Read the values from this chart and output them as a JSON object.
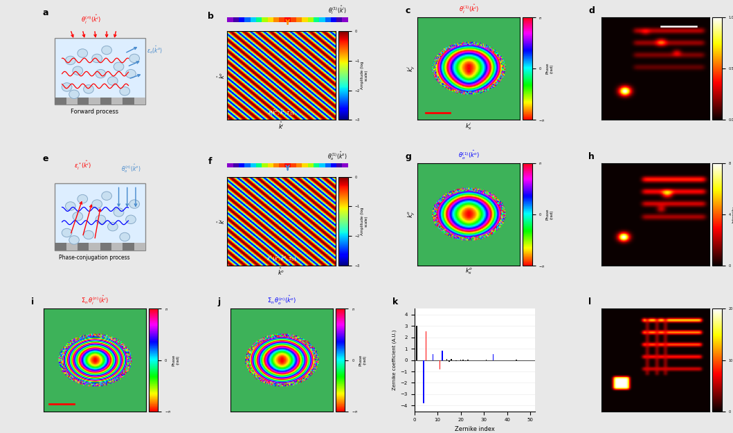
{
  "fig_width": 10.59,
  "fig_height": 6.26,
  "bg_color": "#e8e8e8",
  "zernike_indices": [
    1,
    2,
    3,
    4,
    5,
    6,
    7,
    8,
    9,
    10,
    11,
    12,
    13,
    14,
    15,
    16,
    17,
    18,
    19,
    20,
    21,
    22,
    23,
    24,
    25,
    26,
    27,
    28,
    29,
    30,
    31,
    32,
    33,
    34,
    35,
    36,
    37,
    38,
    39,
    40,
    41,
    42,
    43,
    44,
    45,
    46,
    47,
    48,
    49,
    50
  ],
  "zernike_black": [
    3.0,
    0,
    0,
    0,
    0,
    0,
    0,
    0,
    0,
    0,
    0,
    0,
    0,
    0.08,
    -0.12,
    0.08,
    0,
    -0.06,
    0,
    0.06,
    0.06,
    -0.1,
    0.06,
    0,
    0,
    0,
    0,
    0,
    0,
    0,
    0.06,
    0,
    0,
    0,
    0,
    0,
    0,
    0,
    0,
    0,
    0,
    0,
    0,
    0.06,
    0,
    0,
    0,
    0,
    0,
    0
  ],
  "zernike_red": [
    0,
    0,
    0,
    0,
    2.5,
    0,
    0,
    0,
    0,
    0,
    -0.8,
    0,
    0,
    0,
    0,
    0,
    0,
    0,
    0,
    0,
    0,
    0,
    0,
    0,
    0,
    0,
    0,
    0,
    0,
    0,
    0,
    0,
    0,
    0,
    0,
    0,
    0,
    0,
    0,
    0,
    0,
    0,
    0,
    0,
    0,
    0,
    0,
    0,
    0,
    0
  ],
  "zernike_blue": [
    0,
    0,
    0,
    -3.8,
    0,
    0,
    0,
    0.5,
    0,
    0,
    0,
    0.8,
    0,
    0,
    0,
    0,
    0,
    0,
    0,
    0,
    0,
    0,
    0,
    0,
    0,
    0,
    0,
    0,
    0,
    0,
    0,
    0,
    0,
    0.5,
    0,
    0,
    0,
    0,
    0,
    0,
    0,
    0,
    0,
    0,
    0,
    0,
    0,
    0,
    0,
    0
  ],
  "green_bg": [
    0.24,
    0.7,
    0.35
  ],
  "strip_colors": [
    "#8800CC",
    "#4400AA",
    "#0000FF",
    "#0066FF",
    "#00CCFF",
    "#00FF88",
    "#AAFF00",
    "#FFDD00",
    "#FF8800",
    "#FF4400",
    "#FF0000",
    "#FF4400",
    "#FF8800",
    "#FFDD00",
    "#AAFF00",
    "#00FF88",
    "#00CCFF",
    "#0066FF",
    "#0000FF",
    "#4400AA",
    "#8800CC"
  ]
}
